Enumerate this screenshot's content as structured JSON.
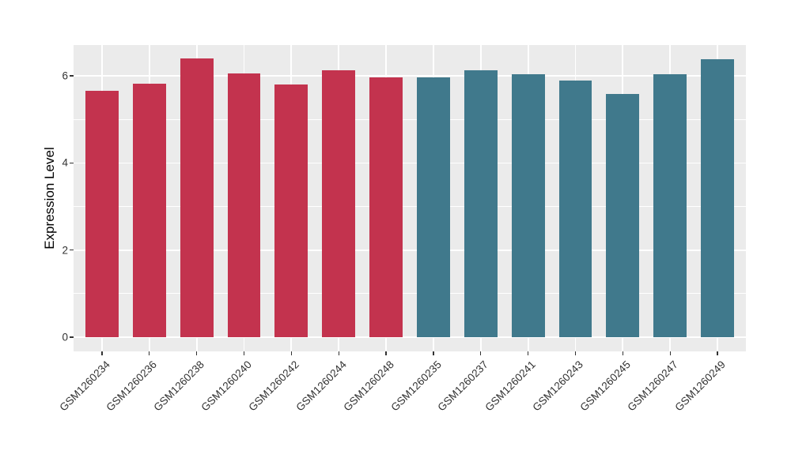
{
  "figure": {
    "background_color": "#FFFFFF",
    "panel_background_color": "#EBEBEB",
    "gridline_color": "#FFFFFF",
    "tick_mark_color": "#333333",
    "tick_label_color": "#333333",
    "axis_title_color": "#000000"
  },
  "chart_data": {
    "type": "bar",
    "title": "",
    "xlabel": "",
    "ylabel": "Expression Level",
    "categories": [
      "GSM1260234",
      "GSM1260236",
      "GSM1260238",
      "GSM1260240",
      "GSM1260242",
      "GSM1260244",
      "GSM1260248",
      "GSM1260235",
      "GSM1260237",
      "GSM1260241",
      "GSM1260243",
      "GSM1260245",
      "GSM1260247",
      "GSM1260249"
    ],
    "values": [
      5.65,
      5.82,
      6.41,
      6.06,
      5.81,
      6.13,
      5.96,
      5.97,
      6.13,
      6.03,
      5.89,
      5.58,
      6.04,
      6.39
    ],
    "bar_colors": [
      "#C3334E",
      "#C3334E",
      "#C3334E",
      "#C3334E",
      "#C3334E",
      "#C3334E",
      "#C3334E",
      "#40798C",
      "#40798C",
      "#40798C",
      "#40798C",
      "#40798C",
      "#40798C",
      "#40798C"
    ],
    "group_colors": {
      "red_group": "#C3334E",
      "teal_group": "#40798C"
    },
    "y_major_ticks": [
      0,
      2,
      4,
      6
    ],
    "y_minor_ticks": [
      1,
      3,
      5
    ],
    "ylim": [
      -0.326,
      6.71
    ],
    "x_tick_rotation_deg": 45,
    "grid": true,
    "legend": false
  }
}
